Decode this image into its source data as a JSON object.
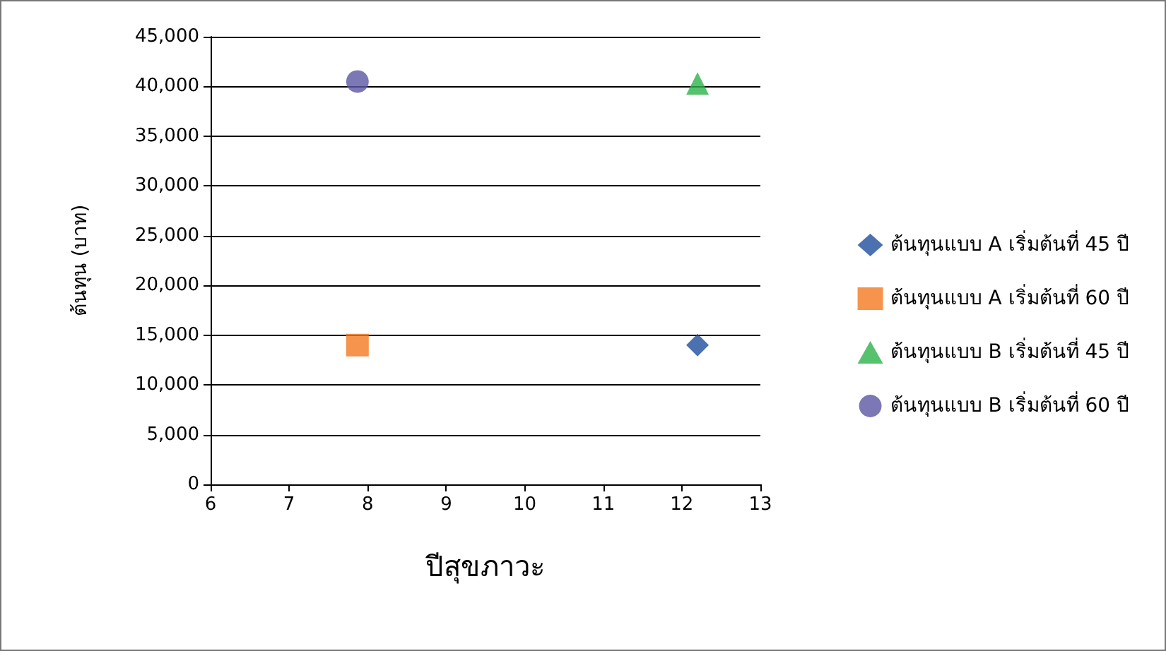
{
  "chart_data": {
    "type": "scatter",
    "xlabel": "ปีสุขภาวะ",
    "ylabel": "ต้นทุน (บาท)",
    "xlim": [
      6,
      13
    ],
    "xticks": [
      6,
      7,
      8,
      9,
      10,
      11,
      12,
      13
    ],
    "ylim": [
      0,
      45000
    ],
    "yticks": [
      0,
      {
        "value": 5000,
        "label": "5,000"
      },
      {
        "value": 10000,
        "label": "10,000"
      },
      {
        "value": 15000,
        "label": "15,000"
      },
      {
        "value": 20000,
        "label": "20,000"
      },
      {
        "value": 25000,
        "label": "25,000"
      },
      {
        "value": 30000,
        "label": "30,000"
      },
      {
        "value": 35000,
        "label": "35,000"
      },
      {
        "value": 40000,
        "label": "40,000"
      },
      {
        "value": 45000,
        "label": "45,000"
      }
    ],
    "grid": "y",
    "legend": "right",
    "x": [
      7.87,
      12.2
    ],
    "series": [
      {
        "name": "ต้นทุนแบบ A เริ่มต้นที่ 45 ปี",
        "color": "#1f4e9c",
        "marker": "diamond",
        "values": [
          null,
          14000
        ]
      },
      {
        "name": "ต้นทุนแบบ A เริ่มต้นที่ 60 ปี",
        "color": "#f47920",
        "marker": "square",
        "values": [
          14000,
          null
        ]
      },
      {
        "name": "ต้นทุนแบบ B เริ่มต้นที่ 45 ปี",
        "color": "#2db34a",
        "marker": "triangle",
        "values": [
          null,
          40300
        ]
      },
      {
        "name": "ต้นทุนแบบ B เริ่มต้นที่ 60 ปี",
        "color": "#5b55a3",
        "marker": "circle",
        "values": [
          40500,
          null
        ]
      }
    ]
  }
}
